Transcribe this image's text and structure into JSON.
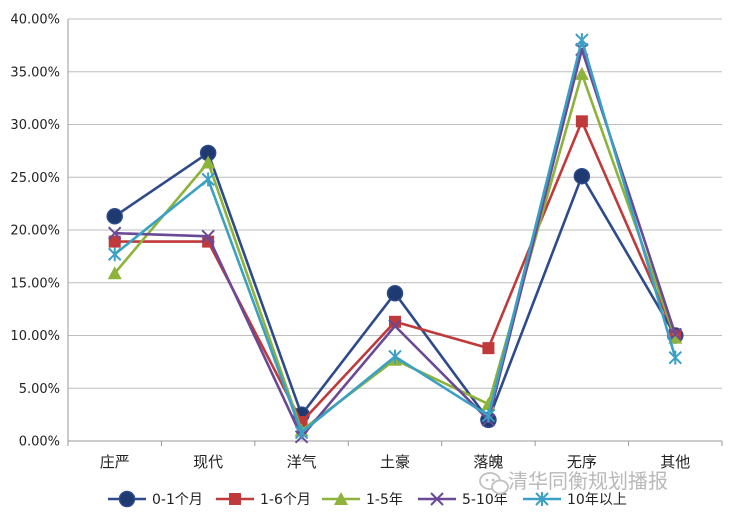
{
  "chart_data": {
    "type": "line",
    "title": "",
    "xlabel": "",
    "ylabel": "",
    "categories": [
      "庄严",
      "现代",
      "洋气",
      "土豪",
      "落魄",
      "无序",
      "其他"
    ],
    "ylim": [
      0,
      0.4
    ],
    "yticks": [
      0,
      0.05,
      0.1,
      0.15,
      0.2,
      0.25,
      0.3,
      0.35,
      0.4
    ],
    "ytick_labels": [
      "0.00%",
      "5.00%",
      "10.00%",
      "15.00%",
      "20.00%",
      "25.00%",
      "30.00%",
      "35.00%",
      "40.00%"
    ],
    "grid": true,
    "legend_position": "bottom",
    "series": [
      {
        "name": "0-1个月",
        "color": "#2e4a8a",
        "marker": "circle",
        "values": [
          0.213,
          0.273,
          0.025,
          0.14,
          0.02,
          0.251,
          0.1
        ]
      },
      {
        "name": "1-6个月",
        "color": "#c0393b",
        "marker": "square",
        "values": [
          0.189,
          0.189,
          0.018,
          0.113,
          0.088,
          0.303,
          0.1
        ]
      },
      {
        "name": "1-5年",
        "color": "#8db33a",
        "marker": "triangle",
        "values": [
          0.159,
          0.264,
          0.01,
          0.077,
          0.035,
          0.348,
          0.098
        ]
      },
      {
        "name": "5-10年",
        "color": "#6a4a96",
        "marker": "x",
        "values": [
          0.197,
          0.194,
          0.004,
          0.109,
          0.02,
          0.371,
          0.101
        ]
      },
      {
        "name": "10年以上",
        "color": "#3aa0c4",
        "marker": "star",
        "values": [
          0.177,
          0.248,
          0.008,
          0.08,
          0.024,
          0.38,
          0.079
        ]
      }
    ]
  },
  "watermark": {
    "icon": "wechat-icon",
    "text": "清华同衡规划播报"
  }
}
